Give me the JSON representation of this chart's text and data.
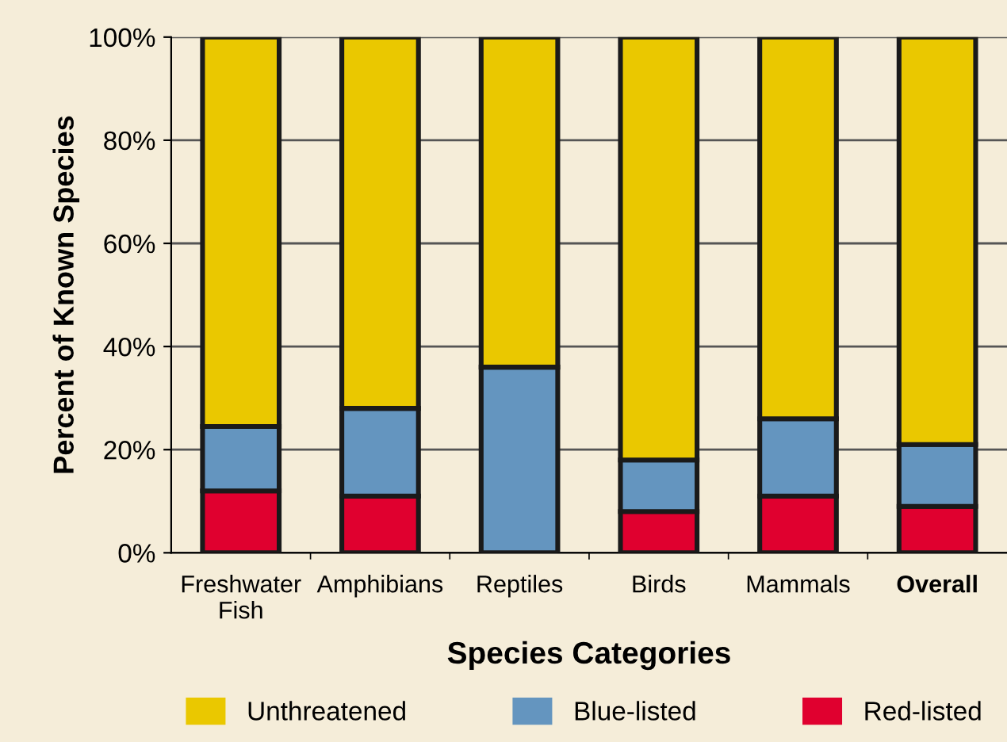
{
  "chart_data": {
    "type": "bar",
    "stacked": true,
    "xlabel": "Species Categories",
    "ylabel": "Percent of Known Species",
    "categories": [
      "Freshwater\nFish",
      "Amphibians",
      "Reptiles",
      "Birds",
      "Mammals",
      "Overall"
    ],
    "series": [
      {
        "name": "Red-listed",
        "color": "#e0002f",
        "values": [
          12,
          11,
          0,
          8,
          11,
          9
        ]
      },
      {
        "name": "Blue-listed",
        "color": "#6495bf",
        "values": [
          12.5,
          17,
          36,
          10,
          15,
          12
        ]
      },
      {
        "name": "Unthreatened",
        "color": "#eac800",
        "values": [
          75.5,
          72,
          64,
          82,
          74,
          79
        ]
      }
    ],
    "ylim": [
      0,
      100
    ],
    "yticks": [
      {
        "value": 0,
        "label": "0%"
      },
      {
        "value": 20,
        "label": "20%"
      },
      {
        "value": 40,
        "label": "40%"
      },
      {
        "value": 60,
        "label": "60%"
      },
      {
        "value": 80,
        "label": "80%"
      },
      {
        "value": 100,
        "label": "100%"
      }
    ],
    "grid": "y",
    "legend": "bottom"
  }
}
